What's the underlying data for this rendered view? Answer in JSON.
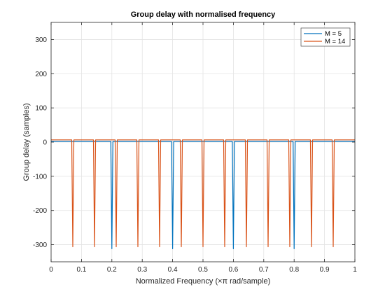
{
  "chart_data": {
    "type": "line",
    "title": "Group delay with normalised frequency",
    "xlabel": "Normalized Frequency (×π rad/sample)",
    "ylabel": "Group delay (samples)",
    "xlim": [
      0,
      1
    ],
    "ylim": [
      -350,
      350
    ],
    "xticks": [
      "0",
      "0.1",
      "0.2",
      "0.3",
      "0.4",
      "0.5",
      "0.6",
      "0.7",
      "0.8",
      "0.9",
      "1"
    ],
    "yticks": [
      "-300",
      "-200",
      "-100",
      "0",
      "100",
      "200",
      "300"
    ],
    "grid": true,
    "legend_position": "top-right",
    "series": [
      {
        "name": "M = 5",
        "color": "#0072BD",
        "baseline": 2,
        "spike_depth": -312,
        "spikes_x": [
          0.2,
          0.4,
          0.6,
          0.8
        ]
      },
      {
        "name": "M = 14",
        "color": "#D95319",
        "baseline": 6.5,
        "spike_depth": -306,
        "spikes_x": [
          0.0714,
          0.1429,
          0.2143,
          0.2857,
          0.3571,
          0.4286,
          0.5,
          0.5714,
          0.6429,
          0.7143,
          0.7857,
          0.8571,
          0.9286
        ]
      }
    ]
  }
}
